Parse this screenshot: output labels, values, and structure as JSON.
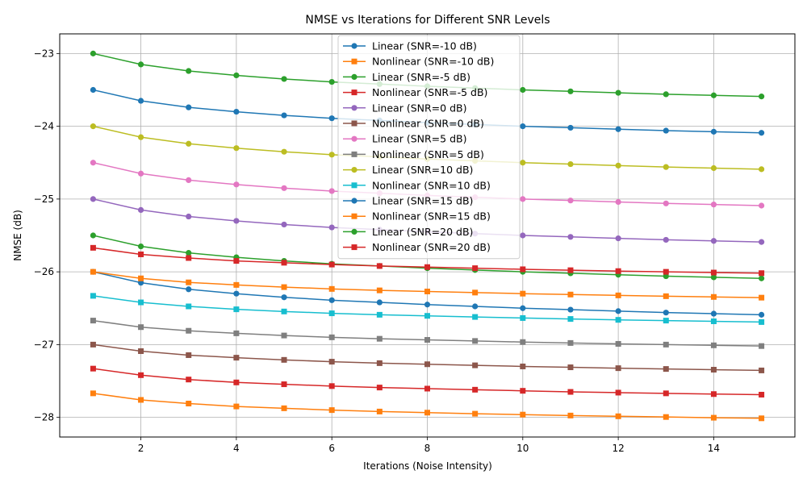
{
  "chart_data": {
    "type": "line",
    "title": "NMSE vs Iterations for Different SNR Levels",
    "xlabel": "Iterations (Noise Intensity)",
    "ylabel": "NMSE (dB)",
    "xlim": [
      0.3,
      15.7
    ],
    "ylim": [
      -28.27,
      -22.73
    ],
    "xticks": [
      2,
      4,
      6,
      8,
      10,
      12,
      14
    ],
    "yticks": [
      -28,
      -27,
      -26,
      -25,
      -24,
      -23
    ],
    "xtick_labels": [
      "2",
      "4",
      "6",
      "8",
      "10",
      "12",
      "14"
    ],
    "ytick_labels": [
      "−28",
      "−27",
      "−26",
      "−25",
      "−24",
      "−23"
    ],
    "grid": true,
    "legend_position": "top-center",
    "x": [
      1,
      2,
      3,
      4,
      5,
      6,
      7,
      8,
      9,
      10,
      11,
      12,
      13,
      14,
      15
    ],
    "series": [
      {
        "name": "Linear (SNR=-10 dB)",
        "color": "#1f77b4",
        "marker": "circle",
        "values": [
          -26.0,
          -26.15,
          -26.24,
          -26.3,
          -26.35,
          -26.39,
          -26.42,
          -26.45,
          -26.475,
          -26.5,
          -26.52,
          -26.54,
          -26.56,
          -26.575,
          -26.59
        ]
      },
      {
        "name": "Nonlinear (SNR=-10 dB)",
        "color": "#ff7f0e",
        "marker": "square",
        "values": [
          -27.67,
          -27.76,
          -27.81,
          -27.85,
          -27.875,
          -27.9,
          -27.92,
          -27.935,
          -27.95,
          -27.962,
          -27.975,
          -27.985,
          -27.995,
          -28.005,
          -28.013
        ]
      },
      {
        "name": "Linear (SNR=-5 dB)",
        "color": "#2ca02c",
        "marker": "circle",
        "values": [
          -23.0,
          -23.15,
          -23.24,
          -23.3,
          -23.35,
          -23.39,
          -23.42,
          -23.45,
          -23.475,
          -23.5,
          -23.52,
          -23.54,
          -23.56,
          -23.575,
          -23.59
        ]
      },
      {
        "name": "Nonlinear (SNR=-5 dB)",
        "color": "#d62728",
        "marker": "square",
        "values": [
          -27.33,
          -27.42,
          -27.48,
          -27.52,
          -27.545,
          -27.57,
          -27.59,
          -27.605,
          -27.62,
          -27.635,
          -27.65,
          -27.66,
          -27.67,
          -27.68,
          -27.688
        ]
      },
      {
        "name": "Linear (SNR=0 dB)",
        "color": "#9467bd",
        "marker": "circle",
        "values": [
          -25.0,
          -25.15,
          -25.24,
          -25.3,
          -25.35,
          -25.39,
          -25.42,
          -25.45,
          -25.475,
          -25.5,
          -25.52,
          -25.54,
          -25.56,
          -25.575,
          -25.59
        ]
      },
      {
        "name": "Nonlinear (SNR=0 dB)",
        "color": "#8c564b",
        "marker": "square",
        "values": [
          -27.0,
          -27.09,
          -27.145,
          -27.18,
          -27.21,
          -27.235,
          -27.255,
          -27.27,
          -27.285,
          -27.3,
          -27.312,
          -27.324,
          -27.335,
          -27.345,
          -27.355
        ]
      },
      {
        "name": "Linear (SNR=5 dB)",
        "color": "#e377c2",
        "marker": "circle",
        "values": [
          -24.5,
          -24.65,
          -24.74,
          -24.8,
          -24.85,
          -24.89,
          -24.92,
          -24.95,
          -24.975,
          -25.0,
          -25.02,
          -25.04,
          -25.06,
          -25.075,
          -25.09
        ]
      },
      {
        "name": "Nonlinear (SNR=5 dB)",
        "color": "#7f7f7f",
        "marker": "square",
        "values": [
          -26.67,
          -26.76,
          -26.81,
          -26.845,
          -26.875,
          -26.9,
          -26.92,
          -26.935,
          -26.95,
          -26.965,
          -26.978,
          -26.99,
          -27.0,
          -27.01,
          -27.02
        ]
      },
      {
        "name": "Linear (SNR=10 dB)",
        "color": "#bcbd22",
        "marker": "circle",
        "values": [
          -24.0,
          -24.15,
          -24.24,
          -24.3,
          -24.35,
          -24.39,
          -24.42,
          -24.45,
          -24.475,
          -24.5,
          -24.52,
          -24.54,
          -24.56,
          -24.575,
          -24.59
        ]
      },
      {
        "name": "Nonlinear (SNR=10 dB)",
        "color": "#17becf",
        "marker": "square",
        "values": [
          -26.33,
          -26.42,
          -26.475,
          -26.515,
          -26.545,
          -26.57,
          -26.59,
          -26.605,
          -26.62,
          -26.635,
          -26.648,
          -26.66,
          -26.67,
          -26.68,
          -26.69
        ]
      },
      {
        "name": "Linear (SNR=15 dB)",
        "color": "#1f77b4",
        "marker": "circle",
        "values": [
          -23.5,
          -23.65,
          -23.74,
          -23.8,
          -23.85,
          -23.89,
          -23.92,
          -23.95,
          -23.975,
          -24.0,
          -24.02,
          -24.04,
          -24.06,
          -24.075,
          -24.09
        ]
      },
      {
        "name": "Nonlinear (SNR=15 dB)",
        "color": "#ff7f0e",
        "marker": "square",
        "values": [
          -26.0,
          -26.09,
          -26.145,
          -26.18,
          -26.21,
          -26.235,
          -26.255,
          -26.27,
          -26.285,
          -26.3,
          -26.312,
          -26.324,
          -26.335,
          -26.345,
          -26.355
        ]
      },
      {
        "name": "Linear (SNR=20 dB)",
        "color": "#2ca02c",
        "marker": "circle",
        "values": [
          -25.5,
          -25.65,
          -25.74,
          -25.8,
          -25.85,
          -25.89,
          -25.92,
          -25.95,
          -25.975,
          -26.0,
          -26.02,
          -26.04,
          -26.06,
          -26.075,
          -26.09
        ]
      },
      {
        "name": "Nonlinear (SNR=20 dB)",
        "color": "#d62728",
        "marker": "square",
        "values": [
          -25.67,
          -25.76,
          -25.81,
          -25.85,
          -25.875,
          -25.9,
          -25.92,
          -25.935,
          -25.95,
          -25.965,
          -25.978,
          -25.99,
          -26.0,
          -26.01,
          -26.018
        ]
      }
    ]
  }
}
